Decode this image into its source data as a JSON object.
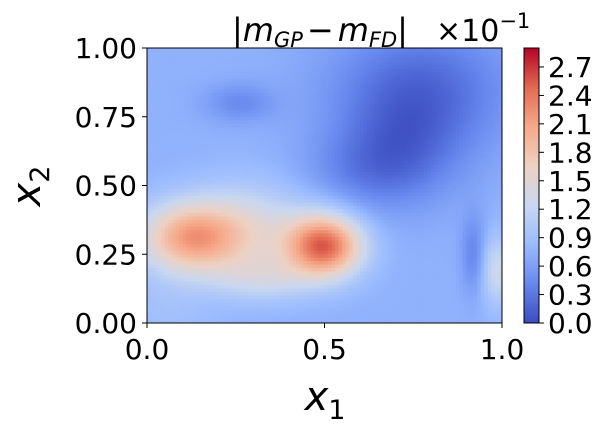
{
  "chart_data": {
    "type": "heatmap",
    "title": {
      "bar_left": "|",
      "main_1": "m",
      "sub_1": "GP",
      "minus": "−",
      "main_2": "m",
      "sub_2": "FD",
      "bar_right": "|",
      "multiplier": "×10",
      "exponent": "−1"
    },
    "xlabel": {
      "main": "x",
      "sub": "1"
    },
    "ylabel": {
      "main": "x",
      "sub": "2"
    },
    "xlim": [
      0.0,
      1.0
    ],
    "ylim": [
      0.0,
      1.0
    ],
    "x_ticks": [
      0.0,
      0.5,
      1.0
    ],
    "x_tick_labels": [
      "0.0",
      "0.5",
      "1.0"
    ],
    "y_ticks": [
      0.0,
      0.25,
      0.5,
      0.75,
      1.0
    ],
    "y_tick_labels": [
      "0.00",
      "0.25",
      "0.50",
      "0.75",
      "1.00"
    ],
    "colorbar": {
      "range": [
        0.0,
        2.9
      ],
      "ticks": [
        0.0,
        0.3,
        0.6,
        0.9,
        1.2,
        1.5,
        1.8,
        2.1,
        2.4,
        2.7
      ],
      "tick_labels": [
        "0.0",
        "0.3",
        "0.6",
        "0.9",
        "1.2",
        "1.5",
        "1.8",
        "2.1",
        "2.4",
        "2.7"
      ]
    },
    "colormap": "coolwarm",
    "colormap_stops": [
      "#3b4cc0",
      "#6788ee",
      "#9abbff",
      "#c9d7f0",
      "#edd1c2",
      "#f7a889",
      "#e26952",
      "#b40426"
    ],
    "grid": false,
    "field_features": [
      {
        "x": 0.12,
        "y": 0.31,
        "value": 2.0
      },
      {
        "x": 0.5,
        "y": 0.28,
        "value": 2.6
      },
      {
        "x": 0.3,
        "y": 0.33,
        "value": 1.2
      },
      {
        "x": 0.98,
        "y": 0.2,
        "value": 1.0
      },
      {
        "x": 0.75,
        "y": 0.85,
        "value": 0.0
      },
      {
        "x": 0.25,
        "y": 0.8,
        "value": 0.1
      }
    ]
  }
}
